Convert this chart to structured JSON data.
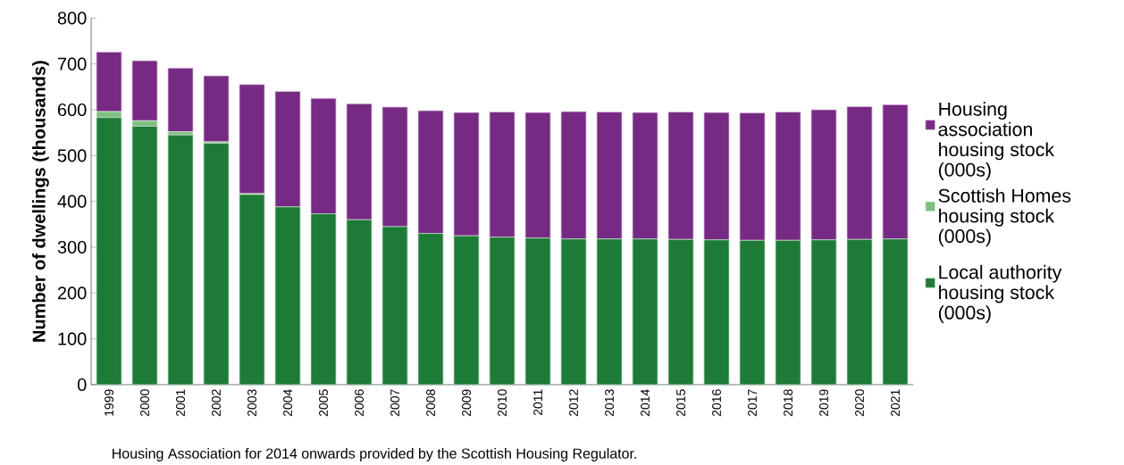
{
  "chart_data": {
    "type": "bar",
    "stacked": true,
    "ylabel": "Number of dwellings (thousands)",
    "categories": [
      "1999",
      "2000",
      "2001",
      "2002",
      "2003",
      "2004",
      "2005",
      "2006",
      "2007",
      "2008",
      "2009",
      "2010",
      "2011",
      "2012",
      "2013",
      "2014",
      "2015",
      "2016",
      "2017",
      "2018",
      "2019",
      "2020",
      "2021"
    ],
    "series": [
      {
        "name": "Local authority housing stock (000s)",
        "color": "#1e7b37",
        "values": [
          583,
          564,
          545,
          527,
          415,
          388,
          373,
          360,
          345,
          330,
          325,
          322,
          320,
          318,
          318,
          318,
          317,
          316,
          315,
          315,
          316,
          317,
          318
        ]
      },
      {
        "name": "Scottish Homes housing stock (000s)",
        "color": "#7fbf7f",
        "values": [
          13,
          12,
          7,
          3,
          2,
          0,
          0,
          0,
          0,
          0,
          0,
          0,
          0,
          0,
          0,
          0,
          0,
          0,
          0,
          0,
          0,
          0,
          0
        ]
      },
      {
        "name": "Housing association housing stock (000s)",
        "color": "#772a83",
        "values": [
          130,
          131,
          139,
          144,
          238,
          252,
          252,
          253,
          261,
          268,
          269,
          273,
          274,
          278,
          277,
          276,
          278,
          278,
          278,
          280,
          284,
          290,
          293
        ]
      }
    ],
    "ylim": [
      0,
      800
    ],
    "yticks": [
      0,
      100,
      200,
      300,
      400,
      500,
      600,
      700,
      800
    ],
    "grid": false,
    "legend": "right",
    "annotations": [
      "Housing Association for 2014 onwards provided by the Scottish Housing Regulator."
    ]
  }
}
